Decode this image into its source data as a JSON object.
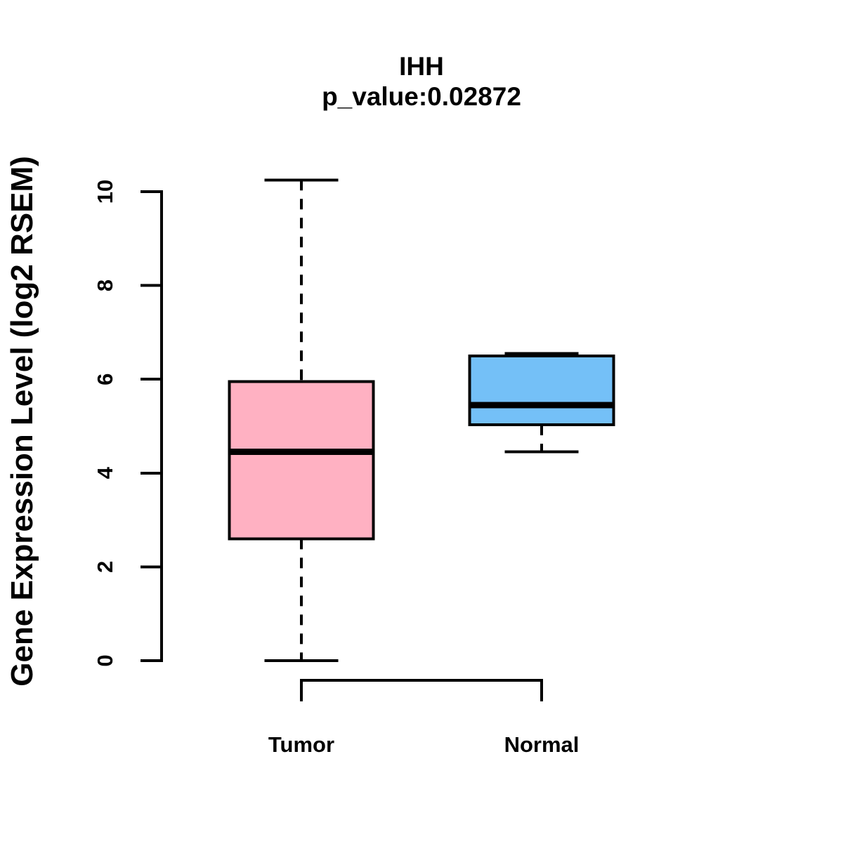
{
  "chart_data": {
    "type": "boxplot",
    "title": "IHH",
    "subtitle": "p_value:0.02872",
    "ylabel": "Gene Expression Level (log2 RSEM)",
    "xlabel": "",
    "categories": [
      "Tumor",
      "Normal"
    ],
    "yticks": [
      0,
      2,
      4,
      6,
      8,
      10
    ],
    "ylim": [
      0,
      10.3
    ],
    "grid": false,
    "legend": "none",
    "series": [
      {
        "name": "Tumor",
        "color": "#FFB1C2",
        "whisker_low": 0.0,
        "q1": 2.6,
        "median": 4.45,
        "q3": 5.95,
        "whisker_high": 10.25
      },
      {
        "name": "Normal",
        "color": "#74C0F7",
        "whisker_low": 4.45,
        "q1": 5.03,
        "median": 5.45,
        "q3": 6.5,
        "whisker_high": 6.55
      }
    ],
    "style": {
      "box_border_color": "#000000",
      "median_color": "#000000",
      "whisker_style": "dashed",
      "axis_color": "#000000",
      "background": "#FFFFFF"
    }
  }
}
